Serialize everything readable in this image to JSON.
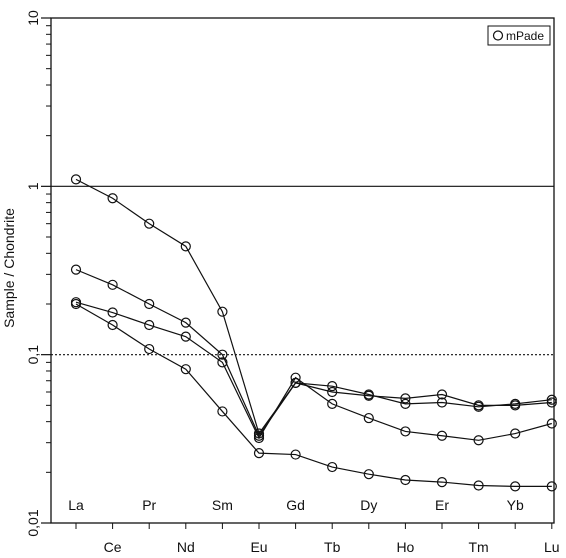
{
  "chart_data": {
    "type": "line",
    "scale": "log",
    "ylabel": "Sample / Chondrite",
    "xlabel": "",
    "ylim": [
      0.01,
      10
    ],
    "y_ticks": [
      {
        "value": 0.01,
        "label": "0,01"
      },
      {
        "value": 0.1,
        "label": "0,1"
      },
      {
        "value": 1,
        "label": "1"
      },
      {
        "value": 10,
        "label": "10"
      }
    ],
    "reference_lines": [
      {
        "value": 1,
        "style": "solid"
      },
      {
        "value": 0.1,
        "style": "dotted"
      }
    ],
    "categories": [
      "La",
      "Ce",
      "Pr",
      "Nd",
      "Sm",
      "Eu",
      "Gd",
      "Tb",
      "Dy",
      "Ho",
      "Er",
      "Tm",
      "Yb",
      "Lu"
    ],
    "upper_row_labels": [
      "La",
      "Pr",
      "Sm",
      "Gd",
      "Dy",
      "Er",
      "Yb"
    ],
    "lower_row_labels": [
      "Ce",
      "Nd",
      "Eu",
      "Tb",
      "Ho",
      "Tm",
      "Lu"
    ],
    "legend": {
      "label": "mPade",
      "position": "top-right"
    },
    "series": [
      {
        "values": [
          1.1,
          0.85,
          0.6,
          0.44,
          0.18,
          0.034,
          0.068,
          0.06,
          0.057,
          0.055,
          0.058,
          0.05,
          0.05,
          0.052
        ]
      },
      {
        "values": [
          0.32,
          0.26,
          0.2,
          0.155,
          0.1,
          0.033,
          0.068,
          0.065,
          0.058,
          0.051,
          0.052,
          0.049,
          0.051,
          0.054
        ]
      },
      {
        "values": [
          0.205,
          0.178,
          0.15,
          0.128,
          0.09,
          0.032,
          0.073,
          0.051,
          0.042,
          0.035,
          0.033,
          0.031,
          0.034,
          0.039
        ]
      },
      {
        "values": [
          0.2,
          0.15,
          0.108,
          0.082,
          0.046,
          0.026,
          0.0255,
          0.0215,
          0.0195,
          0.018,
          0.0175,
          0.0167,
          0.0165,
          0.0165
        ]
      }
    ]
  }
}
